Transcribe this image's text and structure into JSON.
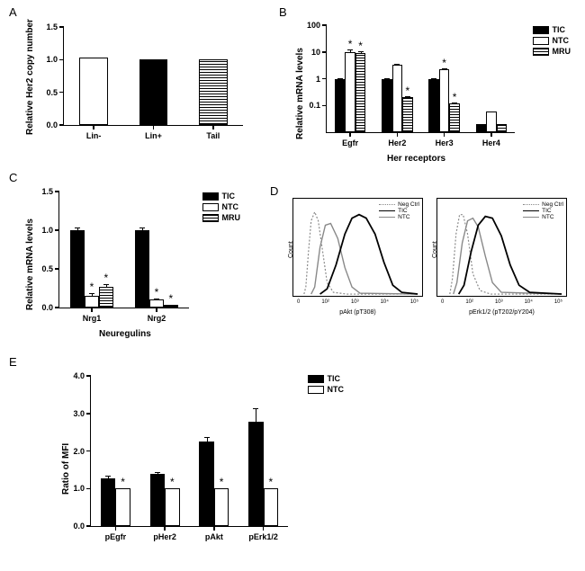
{
  "panels": {
    "A": {
      "label": "A",
      "type": "bar",
      "ylabel": "Relative Her2 copy number",
      "ylim": [
        0,
        1.5
      ],
      "ytick_step": 0.5,
      "categories": [
        "Lin-",
        "Lin+",
        "Tail"
      ],
      "values": [
        1.03,
        1.01,
        1.0
      ],
      "fills": [
        "#ffffff",
        "#000000",
        "hatched"
      ],
      "bar_width": 0.48
    },
    "B": {
      "label": "B",
      "type": "grouped-bar-log",
      "ylabel": "Relative mRNA levels",
      "xlabel": "Her receptors",
      "ylim": [
        0.01,
        100
      ],
      "yticks": [
        0.1,
        1,
        10,
        100
      ],
      "ytick_labels": [
        "0.1",
        "1",
        "10",
        "100"
      ],
      "groups": [
        "Egfr",
        "Her2",
        "Her3",
        "Her4"
      ],
      "series": [
        "TIC",
        "NTC",
        "MRU"
      ],
      "series_fills": [
        "#000000",
        "#ffffff",
        "hatched"
      ],
      "values": [
        [
          1.0,
          9.8,
          9.0
        ],
        [
          1.0,
          3.2,
          0.2
        ],
        [
          1.0,
          2.2,
          0.12
        ],
        [
          0.02,
          0.06,
          0.02
        ]
      ],
      "err": [
        [
          0.08,
          2.4,
          2.0
        ],
        [
          0.08,
          0.4,
          0.02
        ],
        [
          0.07,
          0.3,
          0.01
        ],
        [
          0,
          0,
          0
        ]
      ],
      "sig": [
        [
          false,
          true,
          true
        ],
        [
          false,
          false,
          true
        ],
        [
          false,
          true,
          true
        ],
        [
          false,
          false,
          false
        ]
      ],
      "bar_width": 0.22
    },
    "C": {
      "label": "C",
      "type": "grouped-bar",
      "ylabel": "Relative mRNA levels",
      "xlabel": "Neuregulins",
      "ylim": [
        0,
        1.5
      ],
      "ytick_step": 0.5,
      "groups": [
        "Nrg1",
        "Nrg2"
      ],
      "series": [
        "TIC",
        "NTC",
        "MRU"
      ],
      "series_fills": [
        "#000000",
        "#ffffff",
        "hatched"
      ],
      "values": [
        [
          1.0,
          0.15,
          0.27
        ],
        [
          1.0,
          0.1,
          0.03
        ]
      ],
      "err": [
        [
          0.03,
          0.04,
          0.03
        ],
        [
          0.03,
          0.02,
          0.01
        ]
      ],
      "sig": [
        [
          false,
          true,
          true
        ],
        [
          false,
          true,
          true
        ]
      ],
      "bar_width": 0.22
    },
    "D": {
      "label": "D",
      "plots": [
        {
          "xlabel": "pAkt (pT308)",
          "ylabel": "Count",
          "legend": [
            "Neg Ctrl",
            "TIC",
            "NTC"
          ],
          "line_styles": [
            "dotted",
            "solid",
            "solid"
          ],
          "line_colors": [
            "#888888",
            "#000000",
            "#888888"
          ],
          "xticks": [
            "0",
            "10^2",
            "10^3",
            "10^4",
            "10^5"
          ]
        },
        {
          "xlabel": "pErk1/2 (pT202/pY204)",
          "ylabel": "Count",
          "legend": [
            "Neg Ctrl",
            "TIC",
            "NTC"
          ],
          "line_styles": [
            "dotted",
            "solid",
            "solid"
          ],
          "line_colors": [
            "#888888",
            "#000000",
            "#888888"
          ],
          "xticks": [
            "0",
            "10^2",
            "10^3",
            "10^4",
            "10^5"
          ]
        }
      ]
    },
    "E": {
      "label": "E",
      "type": "grouped-bar",
      "ylabel": "Ratio of MFI",
      "ylim": [
        0,
        4
      ],
      "ytick_step": 1,
      "groups": [
        "pEgfr",
        "pHer2",
        "pAkt",
        "pErk1/2"
      ],
      "series": [
        "TIC",
        "NTC"
      ],
      "series_fills": [
        "#000000",
        "#ffffff"
      ],
      "values": [
        [
          1.28,
          1.0
        ],
        [
          1.38,
          1.0
        ],
        [
          2.25,
          1.0
        ],
        [
          2.78,
          1.0
        ]
      ],
      "err": [
        [
          0.05,
          0
        ],
        [
          0.05,
          0
        ],
        [
          0.12,
          0
        ],
        [
          0.35,
          0
        ]
      ],
      "sig": [
        [
          false,
          true
        ],
        [
          false,
          true
        ],
        [
          false,
          true
        ],
        [
          false,
          true
        ]
      ],
      "bar_width": 0.3
    }
  },
  "colors": {
    "axis": "#000000",
    "background": "#ffffff"
  }
}
